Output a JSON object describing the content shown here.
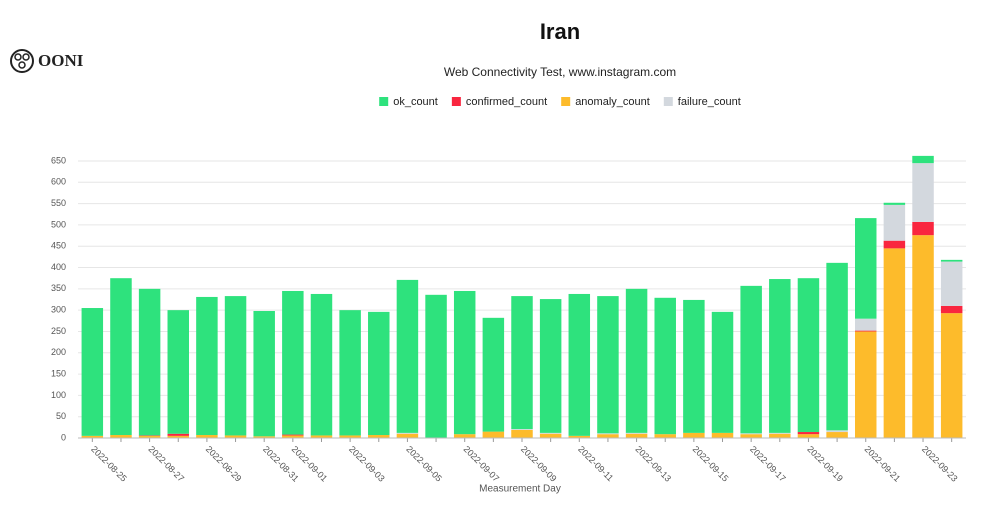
{
  "logo": "OONI",
  "chart_data": {
    "type": "stacked_bar",
    "title": "Iran",
    "subtitle": "Web Connectivity Test, www.instagram.com",
    "x_label": "Measurement Day",
    "categories": [
      "2022-08-25",
      null,
      "2022-08-27",
      null,
      "2022-08-29",
      null,
      "2022-08-31",
      "2022-09-01",
      null,
      "2022-09-03",
      null,
      "2022-09-05",
      null,
      "2022-09-07",
      null,
      "2022-09-09",
      null,
      "2022-09-11",
      null,
      "2022-09-13",
      null,
      "2022-09-15",
      null,
      "2022-09-17",
      null,
      "2022-09-19",
      null,
      "2022-09-21",
      null,
      "2022-09-23",
      null
    ],
    "series": [
      {
        "name": "ok_count",
        "color": "#2ee27d",
        "values": [
          300,
          368,
          344,
          290,
          324,
          327,
          294,
          337,
          332,
          294,
          289,
          359,
          335,
          336,
          267,
          312,
          314,
          333,
          322,
          338,
          320,
          312,
          284,
          346,
          361,
          361,
          393,
          236,
          5,
          17,
          4
        ]
      },
      {
        "name": "confirmed_count",
        "color": "#f9263f",
        "values": [
          0,
          0,
          1,
          5,
          0,
          0,
          0,
          2,
          0,
          0,
          0,
          0,
          0,
          0,
          0,
          0,
          0,
          0,
          0,
          0,
          0,
          0,
          0,
          0,
          0,
          5,
          0,
          2,
          18,
          31,
          17
        ]
      },
      {
        "name": "anomaly_count",
        "color": "#fdbb2b",
        "values": [
          5,
          7,
          5,
          5,
          7,
          6,
          4,
          6,
          6,
          6,
          7,
          10,
          1,
          9,
          15,
          19,
          10,
          5,
          9,
          10,
          9,
          12,
          12,
          9,
          10,
          9,
          14,
          250,
          445,
          476,
          293
        ]
      },
      {
        "name": "failure_count",
        "color": "#d3d8de",
        "values": [
          0,
          0,
          0,
          0,
          0,
          0,
          0,
          0,
          0,
          0,
          0,
          2,
          0,
          0,
          0,
          2,
          2,
          0,
          2,
          2,
          0,
          0,
          0,
          2,
          2,
          0,
          4,
          28,
          84,
          138,
          104
        ]
      }
    ],
    "ylim": [
      0,
      665
    ],
    "yticks": [
      0,
      50,
      100,
      150,
      200,
      250,
      300,
      350,
      400,
      450,
      500,
      550,
      600,
      650
    ],
    "grid": true
  }
}
